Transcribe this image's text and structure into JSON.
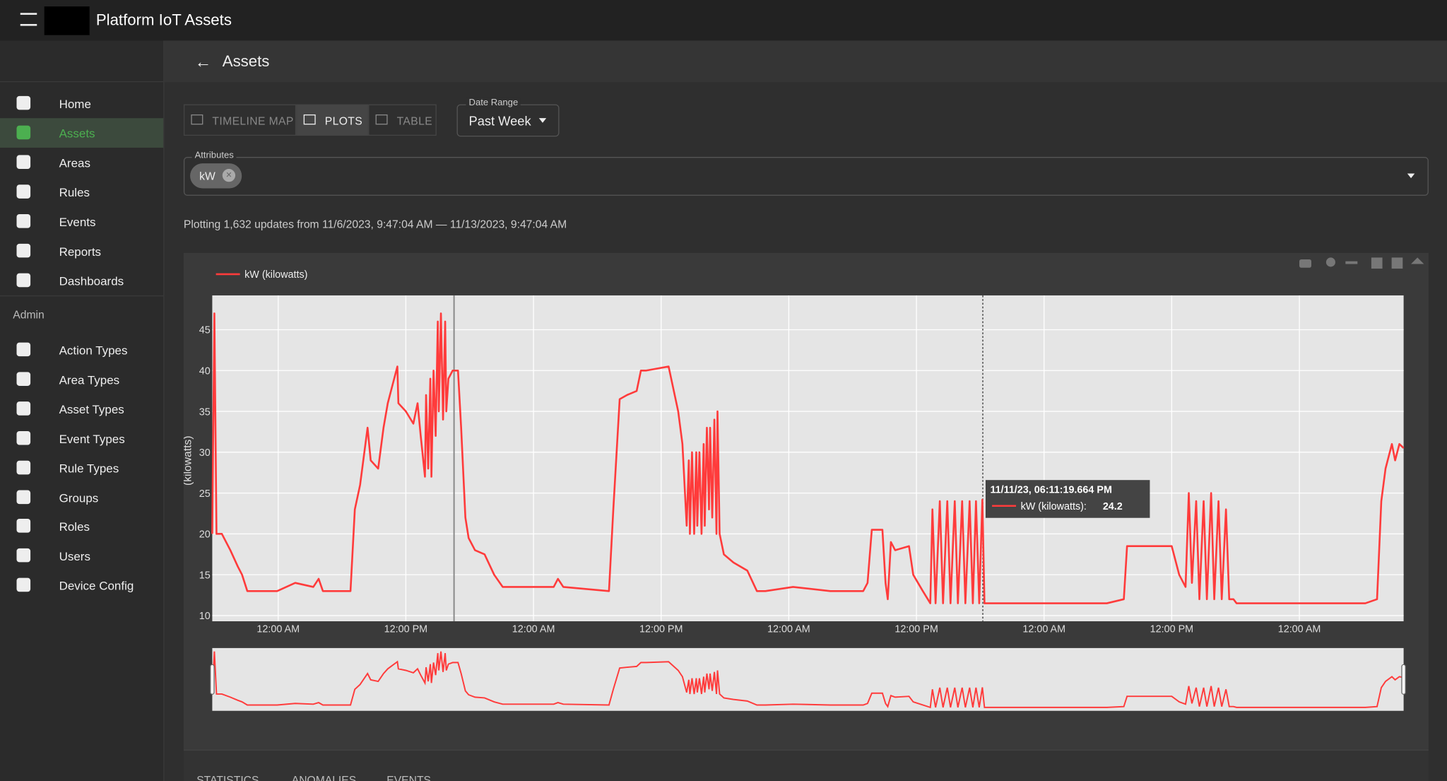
{
  "app_bar": {
    "title": "Platform IoT Assets"
  },
  "sidebar": {
    "nav": [
      "Home",
      "Assets",
      "Areas",
      "Rules",
      "Events",
      "Reports",
      "Dashboards"
    ],
    "section": "Admin",
    "admin": [
      "Action Types",
      "Area Types",
      "Asset Types",
      "Event Types",
      "Rule Types",
      "Groups",
      "Roles",
      "Users",
      "Device Config"
    ]
  },
  "page": {
    "title": "Assets",
    "tabs": [
      "TIMELINE MAP",
      "PLOTS",
      "TABLE"
    ],
    "date_range": {
      "label": "Date Range",
      "value": "Past Week"
    },
    "attributes": {
      "label": "Attributes",
      "chips": [
        "kW"
      ]
    },
    "summary": "Plotting 1,632 updates from 11/6/2023, 9:47:04 AM — 11/13/2023, 9:47:04 AM",
    "bottom_tabs": [
      "STATISTICS",
      "ANOMALIES",
      "EVENTS"
    ]
  },
  "chart_data": {
    "type": "line",
    "y_label": "(kilowatts)",
    "x": [
      0,
      0.2,
      0.4,
      0.9,
      1.7,
      2.4,
      2.8,
      3.3,
      6.1,
      7.8,
      9.5,
      10.0,
      10.4,
      13.0,
      13.4,
      13.9,
      14.6,
      14.9,
      15.6,
      16.1,
      16.5,
      16.9,
      17.4,
      17.5,
      18.2,
      18.9,
      19.3,
      19.6,
      20.0,
      20.1,
      20.3,
      20.5,
      20.6,
      20.8,
      21.0,
      21.2,
      21.3,
      21.5,
      21.7,
      21.9,
      22.0,
      22.2,
      22.6,
      23.1,
      23.4,
      23.8,
      24.1,
      24.7,
      25.6,
      26.5,
      27.3,
      28.6,
      32.1,
      32.5,
      33.0,
      37.3,
      37.7,
      38.3,
      39.0,
      39.9,
      40.3,
      40.8,
      42.9,
      43.8,
      44.2,
      44.6,
      44.8,
      44.9,
      45.1,
      45.3,
      45.5,
      45.6,
      45.8,
      46.0,
      46.2,
      46.3,
      46.5,
      46.7,
      46.8,
      47.0,
      47.2,
      47.4,
      47.5,
      47.7,
      48.1,
      49.0,
      50.3,
      51.2,
      52.0,
      54.6,
      58.1,
      61.2,
      61.6,
      62.0,
      63.0,
      63.3,
      63.5,
      63.8,
      64.2,
      65.5,
      65.9,
      66.8,
      67.5,
      67.7,
      68.0,
      68.4,
      68.7,
      69.1,
      69.4,
      69.8,
      70.1,
      70.5,
      70.8,
      71.2,
      71.5,
      71.8,
      72.1,
      72.4,
      72.6,
      75.4,
      79.8,
      84.1,
      85.7,
      86.0,
      87.6,
      88.9,
      90.2,
      90.9,
      91.5,
      91.8,
      92.1,
      92.5,
      92.8,
      93.2,
      93.5,
      93.9,
      94.2,
      94.6,
      94.9,
      95.3,
      95.6,
      96.0,
      96.3,
      101.5,
      108.4,
      109.5,
      109.9,
      110.3,
      110.9,
      111.2,
      111.6,
      112.0
    ],
    "series": [
      {
        "name": "kW (kilowatts)",
        "color": "#ff3b3b",
        "values": [
          20,
          47,
          20,
          20,
          18,
          16,
          15,
          13,
          13,
          14,
          13.5,
          14.5,
          13,
          13,
          23,
          26,
          33,
          29,
          28,
          33,
          36,
          38,
          40.5,
          36,
          35,
          33.5,
          36,
          32,
          27,
          37,
          28,
          39,
          27,
          40,
          32,
          46,
          35,
          47,
          34,
          46,
          35,
          39,
          40,
          40,
          33,
          22,
          19.5,
          18,
          17.5,
          15,
          13.5,
          13.5,
          13.5,
          14.5,
          13.5,
          13,
          23,
          36.5,
          37,
          37.5,
          40,
          40,
          40.5,
          35,
          31,
          21,
          29,
          20,
          30,
          20,
          30,
          21,
          30,
          20,
          31,
          21,
          33,
          23,
          33,
          22,
          34,
          20,
          35,
          20,
          17.5,
          16.5,
          15.5,
          13,
          13,
          13.5,
          13,
          13,
          14,
          20.5,
          20.5,
          14,
          12,
          19,
          18,
          18.5,
          15,
          13,
          11.5,
          23,
          11.5,
          24,
          11.5,
          24,
          11.5,
          24,
          11.5,
          24,
          11.5,
          24,
          11.5,
          24,
          11.5,
          24.2,
          11.5,
          11.5,
          11.5,
          11.5,
          12,
          18.5,
          18.5,
          18.5,
          18.5,
          15,
          13.5,
          25,
          14,
          24,
          12,
          24,
          12,
          25,
          12,
          24,
          12,
          23,
          12,
          12,
          11.5,
          11.5,
          11.5,
          12,
          24,
          28,
          31,
          29,
          31,
          30.5
        ]
      }
    ],
    "xlim": [
      0,
      112
    ],
    "xticks": [
      {
        "value": 6.2,
        "label": "12:00 AM"
      },
      {
        "value": 18.2,
        "label": "12:00 PM"
      },
      {
        "value": 30.2,
        "label": "12:00 AM"
      },
      {
        "value": 42.2,
        "label": "12:00 PM"
      },
      {
        "value": 54.2,
        "label": "12:00 AM"
      },
      {
        "value": 66.2,
        "label": "12:00 PM"
      },
      {
        "value": 78.2,
        "label": "12:00 AM"
      },
      {
        "value": 90.2,
        "label": "12:00 PM"
      },
      {
        "value": 102.2,
        "label": "12:00 AM"
      }
    ],
    "ylim": [
      9.3,
      49.2
    ],
    "yticks": [
      10,
      15,
      20,
      25,
      30,
      35,
      40,
      45
    ],
    "grid": true,
    "tooltip": {
      "time": "11/11/23, 06:11:19.664 PM",
      "label": "kW (kilowatts):",
      "value": 24.2
    }
  }
}
